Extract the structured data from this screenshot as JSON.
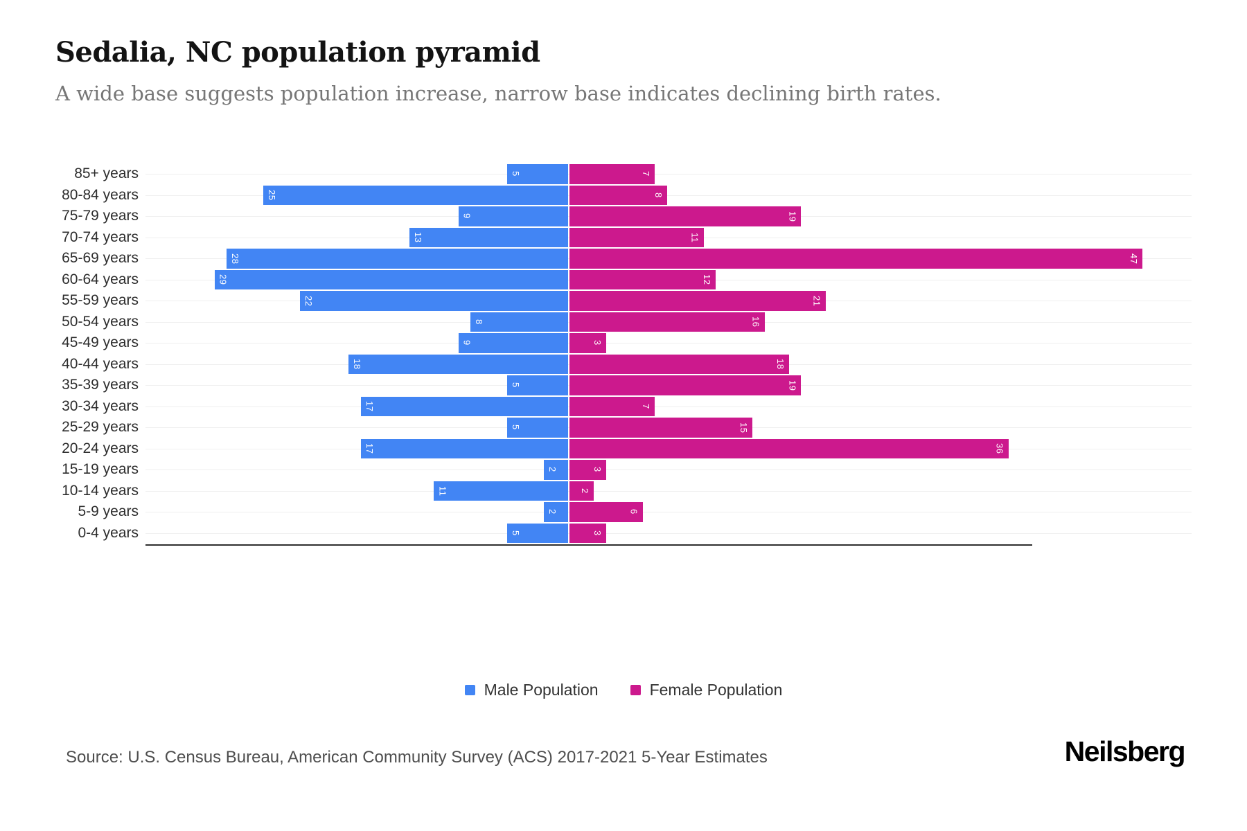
{
  "header": {
    "title": "Sedalia, NC population pyramid",
    "subtitle": "A wide base suggests population increase, narrow base indicates declining birth rates."
  },
  "chart_data": {
    "type": "bar",
    "variant": "population-pyramid",
    "orientation": "horizontal",
    "categories": [
      "85+ years",
      "80-84 years",
      "75-79 years",
      "70-74 years",
      "65-69 years",
      "60-64 years",
      "55-59 years",
      "50-54 years",
      "45-49 years",
      "40-44 years",
      "35-39 years",
      "30-34 years",
      "25-29 years",
      "20-24 years",
      "15-19 years",
      "10-14 years",
      "5-9 years",
      "0-4 years"
    ],
    "series": [
      {
        "name": "Male Population",
        "color": "#4285F4",
        "side": "left",
        "values": [
          5,
          25,
          9,
          13,
          28,
          29,
          22,
          8,
          9,
          18,
          5,
          17,
          5,
          17,
          2,
          11,
          2,
          5
        ]
      },
      {
        "name": "Female Population",
        "color": "#CC198D",
        "side": "right",
        "values": [
          7,
          8,
          19,
          11,
          47,
          12,
          21,
          16,
          3,
          18,
          19,
          7,
          15,
          36,
          3,
          2,
          6,
          3
        ]
      }
    ],
    "value_labels": "white, rotated 90deg, at outer end of each bar",
    "legend_position": "bottom-center",
    "grid": "faint horizontal line per category row",
    "axis": {
      "center_pct": 40.397,
      "unit_pct": 1.1656,
      "male_visible_max": 34.6,
      "female_visible_max": 51.1
    }
  },
  "legend": {
    "items": [
      {
        "label": "Male Population",
        "color": "#4285F4"
      },
      {
        "label": "Female Population",
        "color": "#CC198D"
      }
    ]
  },
  "footer": {
    "source": "Source: U.S. Census Bureau, American Community Survey (ACS) 2017-2021 5-Year Estimates",
    "brand": "Neilsberg"
  }
}
